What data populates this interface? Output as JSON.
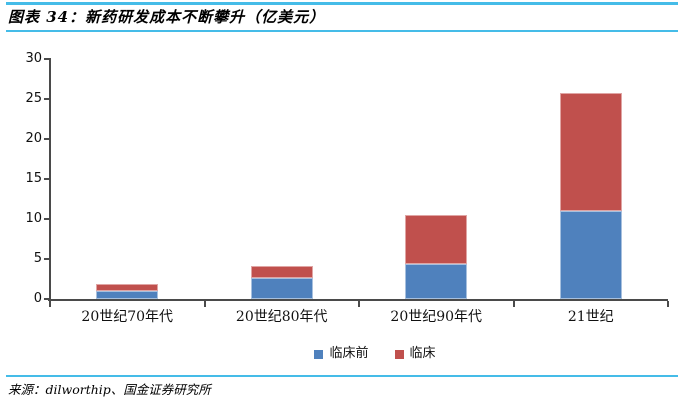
{
  "header": {
    "title": "图表 34：新药研发成本不断攀升（亿美元）"
  },
  "source": {
    "label": "来源：dilworthip、国金证券研究所"
  },
  "colors": {
    "rule_blue": "#45BCE8",
    "axis": "#4a4a4a",
    "series_preclinical": "#4F81BD",
    "series_preclinical_border": "#A7C0DE",
    "series_clinical": "#C0504D",
    "series_clinical_border": "#E0A5A4"
  },
  "chart_data": {
    "type": "bar",
    "stacked": true,
    "title": "新药研发成本不断攀升（亿美元）",
    "categories": [
      "20世纪70年代",
      "20世纪80年代",
      "20世纪90年代",
      "21世纪"
    ],
    "series": [
      {
        "name": "临床前",
        "color": "#4F81BD",
        "border": "#A7C0DE",
        "values": [
          1.0,
          2.6,
          4.4,
          11.0
        ]
      },
      {
        "name": "临床",
        "color": "#C0504D",
        "border": "#E0A5A4",
        "values": [
          0.9,
          1.5,
          6.1,
          14.8
        ]
      }
    ],
    "totals": [
      1.9,
      4.1,
      10.5,
      25.8
    ],
    "xlabel": "",
    "ylabel": "",
    "ylim": [
      0,
      30
    ],
    "yticks": [
      0,
      5,
      10,
      15,
      20,
      25,
      30
    ],
    "grid": false,
    "legend_position": "bottom"
  }
}
